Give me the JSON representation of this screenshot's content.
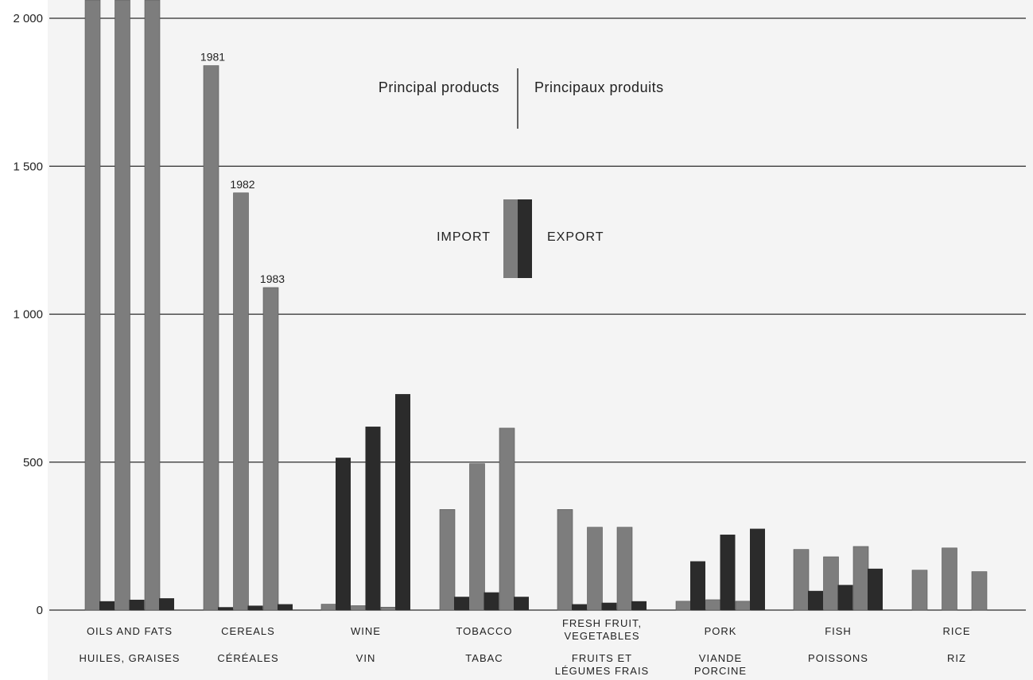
{
  "chart_data": {
    "type": "bar",
    "title_en": "Principal products",
    "title_fr": "Principaux produits",
    "legend": {
      "import_label": "IMPORT",
      "export_label": "EXPORT",
      "import_color": "#7d7d7d",
      "export_color": "#2b2b2b"
    },
    "ylim": [
      0,
      2000
    ],
    "y_ticks": [
      {
        "value": 0,
        "label": "0"
      },
      {
        "value": 500,
        "label": "500"
      },
      {
        "value": 1000,
        "label": "1 000"
      },
      {
        "value": 1500,
        "label": "1 500"
      },
      {
        "value": 2000,
        "label": "2 000"
      }
    ],
    "year_labels": [
      "1981",
      "1982",
      "1983"
    ],
    "categories": [
      {
        "en": [
          "OILS AND FATS"
        ],
        "fr": [
          "HUILES, GRAISES"
        ],
        "import": [
          2150,
          2150,
          2150
        ],
        "export": [
          30,
          35,
          40
        ]
      },
      {
        "en": [
          "CEREALS"
        ],
        "fr": [
          "CÉRÉALES"
        ],
        "import": [
          1840,
          1410,
          1090
        ],
        "export": [
          10,
          15,
          20
        ]
      },
      {
        "en": [
          "WINE"
        ],
        "fr": [
          "VIN"
        ],
        "import": [
          20,
          15,
          10
        ],
        "export": [
          515,
          620,
          730
        ]
      },
      {
        "en": [
          "TOBACCO"
        ],
        "fr": [
          "TABAC"
        ],
        "import": [
          340,
          495,
          615
        ],
        "export": [
          45,
          60,
          45
        ]
      },
      {
        "en": [
          "FRESH FRUIT,",
          "VEGETABLES"
        ],
        "fr": [
          "FRUITS ET",
          "LÉGUMES FRAIS"
        ],
        "import": [
          340,
          280,
          280
        ],
        "export": [
          20,
          25,
          30
        ]
      },
      {
        "en": [
          "PORK"
        ],
        "fr": [
          "VIANDE",
          "PORCINE"
        ],
        "import": [
          30,
          35,
          30
        ],
        "export": [
          165,
          255,
          275
        ]
      },
      {
        "en": [
          "FISH"
        ],
        "fr": [
          "POISSONS"
        ],
        "import": [
          205,
          180,
          215
        ],
        "export": [
          65,
          85,
          140
        ]
      },
      {
        "en": [
          "RICE"
        ],
        "fr": [
          "RIZ"
        ],
        "import": [
          135,
          210,
          130
        ],
        "export": [
          0,
          0,
          0
        ]
      }
    ]
  }
}
